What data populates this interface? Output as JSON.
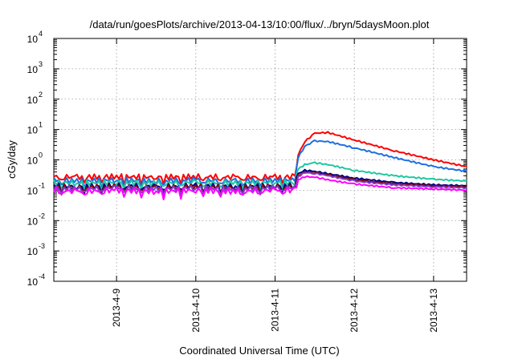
{
  "chart_data": {
    "type": "line",
    "title": "/data/run/goesPlots/archive/2013-04-13/10:00/flux/../bryn/5daysMoon.plot",
    "xlabel": "Coordinated Universal Time (UTC)",
    "ylabel": "cGy/day",
    "y_scale": "log",
    "ylim": [
      0.0001,
      10000
    ],
    "xlim": [
      "2013-04-08T05:00",
      "2013-04-13T10:00"
    ],
    "grid": true,
    "y_ticks": [
      {
        "base": "10",
        "exp": "-4"
      },
      {
        "base": "10",
        "exp": "-3"
      },
      {
        "base": "10",
        "exp": "-2"
      },
      {
        "base": "10",
        "exp": "-1"
      },
      {
        "base": "10",
        "exp": "0"
      },
      {
        "base": "10",
        "exp": "1"
      },
      {
        "base": "10",
        "exp": "2"
      },
      {
        "base": "10",
        "exp": "3"
      },
      {
        "base": "10",
        "exp": "4"
      }
    ],
    "x_ticks": [
      "2013-4-9",
      "2013-4-10",
      "2013-4-11",
      "2013-4-12",
      "2013-4-13"
    ],
    "x": [
      "2013-04-08T05:00",
      "2013-04-08T12:00",
      "2013-04-09T00:00",
      "2013-04-09T12:00",
      "2013-04-10T00:00",
      "2013-04-10T12:00",
      "2013-04-11T00:00",
      "2013-04-11T06:00",
      "2013-04-11T07:00",
      "2013-04-11T09:00",
      "2013-04-11T12:00",
      "2013-04-11T16:00",
      "2013-04-12T00:00",
      "2013-04-12T12:00",
      "2013-04-13T00:00",
      "2013-04-13T10:00"
    ],
    "series": [
      {
        "color": "#ff0000",
        "values": [
          0.28,
          0.27,
          0.28,
          0.27,
          0.28,
          0.27,
          0.27,
          0.28,
          1.5,
          4.0,
          7.5,
          8.0,
          4.5,
          2.0,
          1.0,
          0.6
        ]
      },
      {
        "color": "#1e6fe0",
        "values": [
          0.22,
          0.2,
          0.22,
          0.2,
          0.22,
          0.2,
          0.21,
          0.22,
          1.2,
          2.8,
          4.2,
          4.0,
          2.5,
          1.2,
          0.6,
          0.42
        ]
      },
      {
        "color": "#20c8a0",
        "values": [
          0.18,
          0.17,
          0.18,
          0.17,
          0.18,
          0.17,
          0.18,
          0.18,
          0.5,
          0.7,
          0.8,
          0.7,
          0.45,
          0.3,
          0.23,
          0.2
        ]
      },
      {
        "color": "#000080",
        "values": [
          0.14,
          0.13,
          0.14,
          0.13,
          0.14,
          0.13,
          0.14,
          0.14,
          0.35,
          0.45,
          0.42,
          0.35,
          0.25,
          0.18,
          0.15,
          0.14
        ]
      },
      {
        "color": "#8b0000",
        "values": [
          0.13,
          0.12,
          0.13,
          0.12,
          0.13,
          0.12,
          0.13,
          0.13,
          0.3,
          0.4,
          0.38,
          0.32,
          0.22,
          0.16,
          0.14,
          0.13
        ]
      },
      {
        "color": "#7b3fd0",
        "values": [
          0.12,
          0.11,
          0.12,
          0.11,
          0.12,
          0.11,
          0.12,
          0.12,
          0.28,
          0.38,
          0.36,
          0.3,
          0.2,
          0.15,
          0.13,
          0.12
        ]
      },
      {
        "color": "#ff00ff",
        "values": [
          0.1,
          0.09,
          0.1,
          0.09,
          0.1,
          0.09,
          0.1,
          0.1,
          0.22,
          0.28,
          0.27,
          0.22,
          0.16,
          0.12,
          0.11,
          0.1
        ]
      }
    ]
  }
}
